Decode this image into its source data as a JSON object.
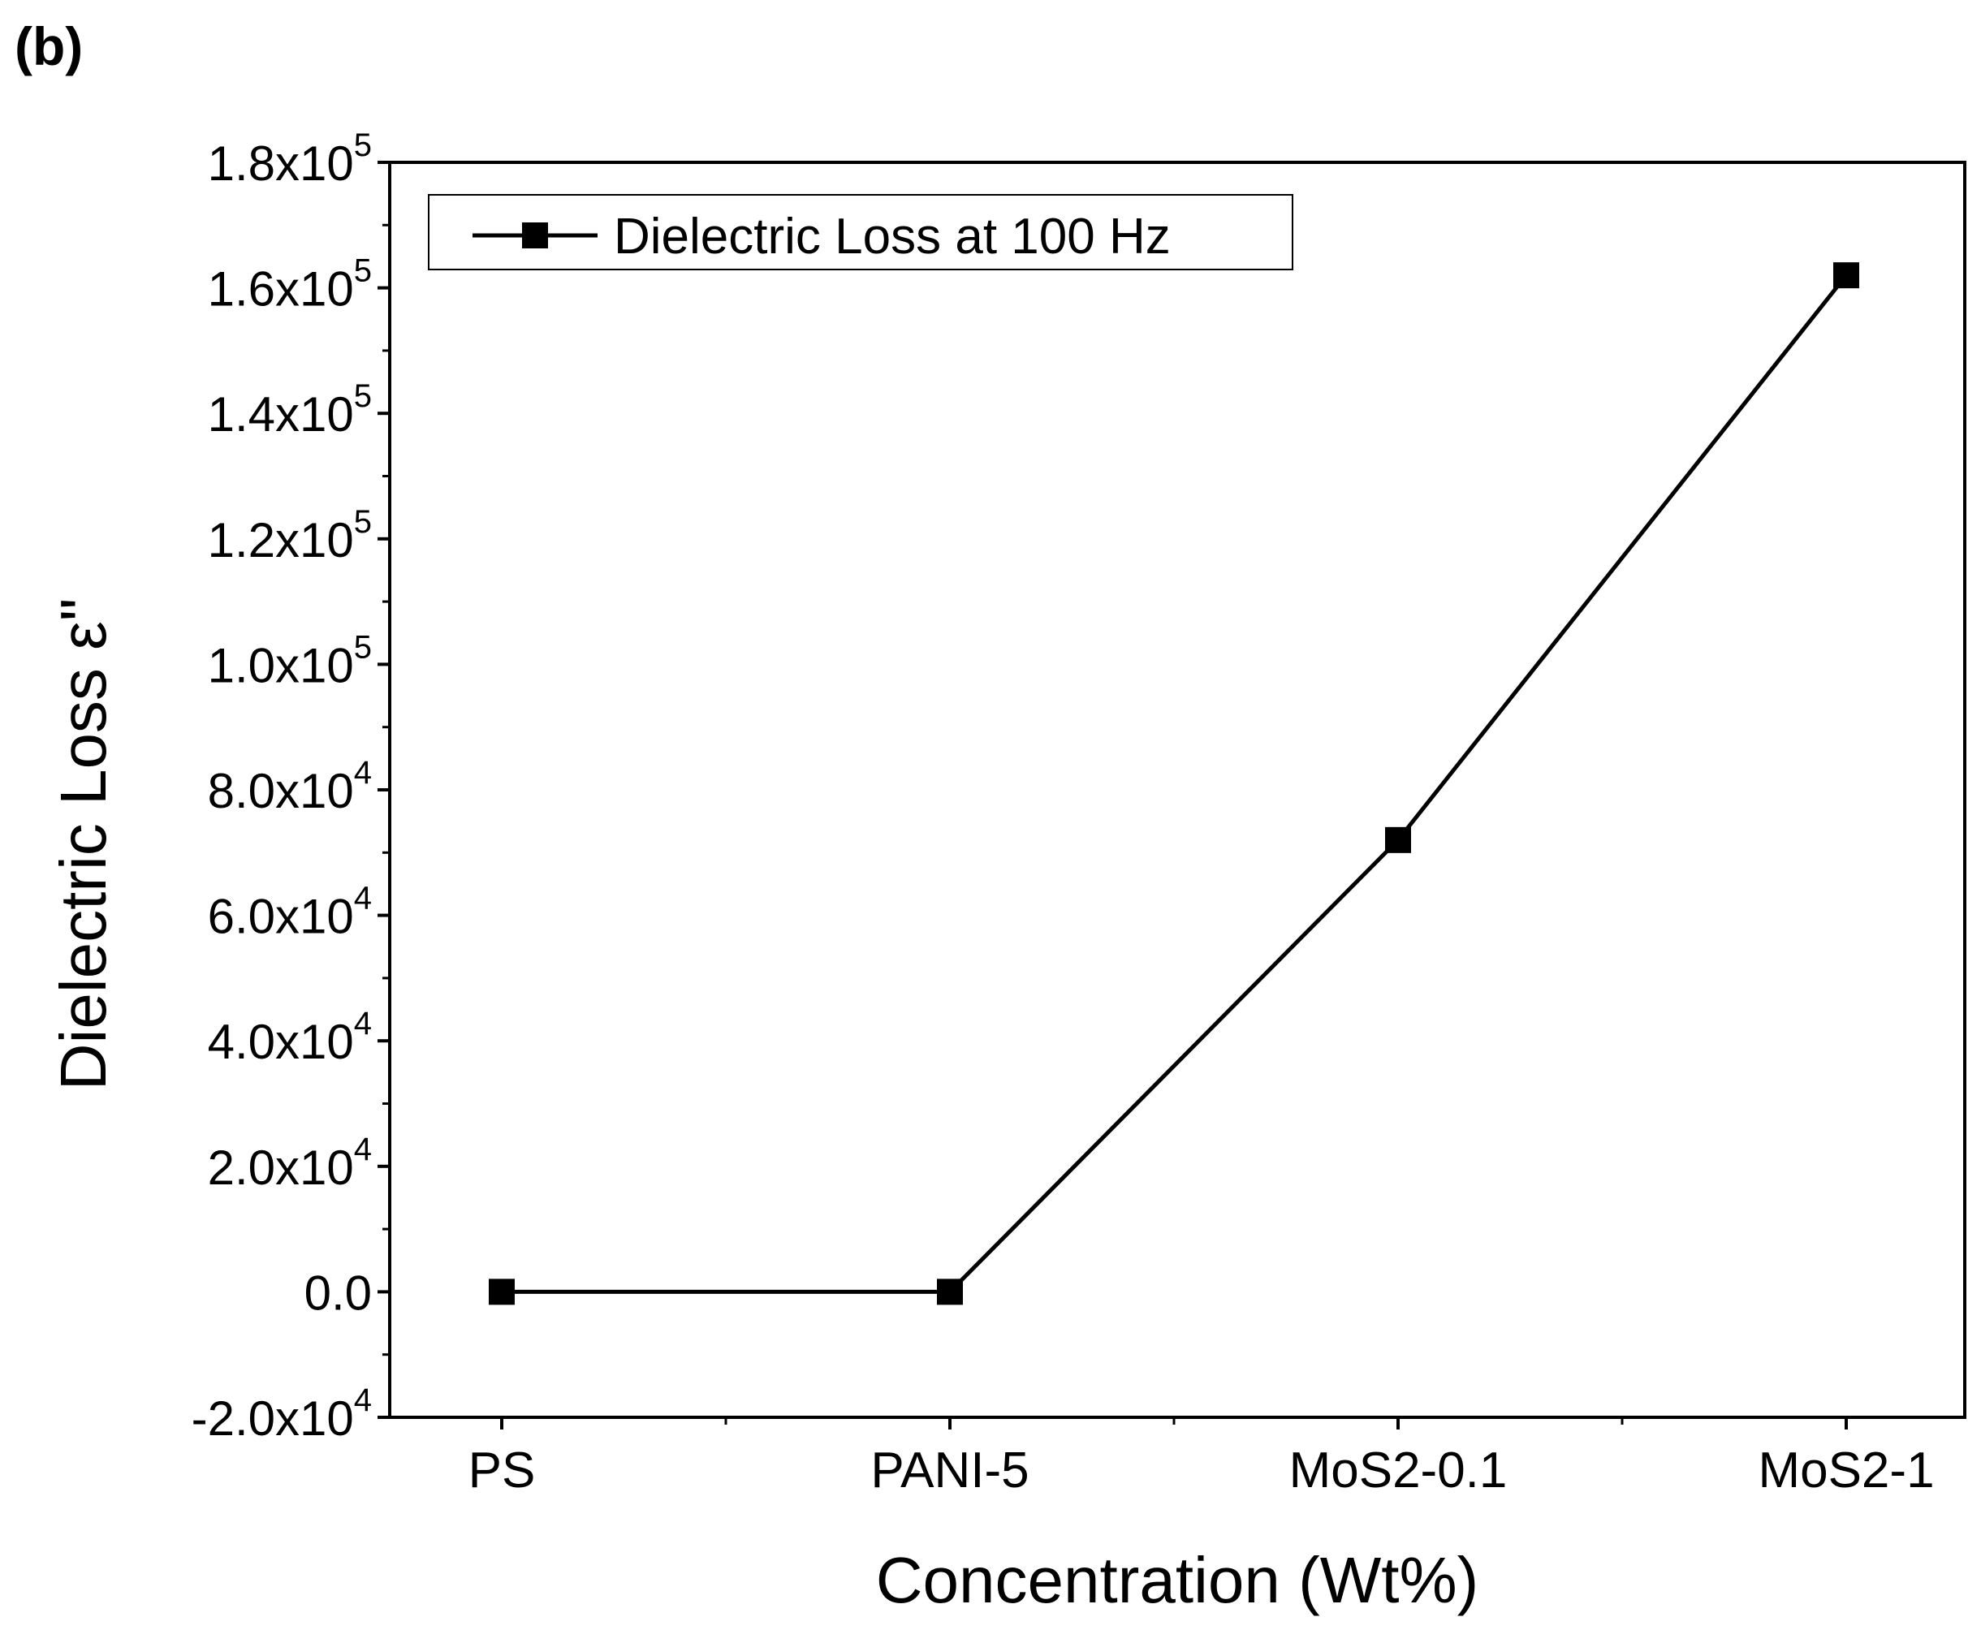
{
  "panel_label": "(b)",
  "chart_data": {
    "type": "line",
    "title": "",
    "xlabel": "Concentration (Wt%)",
    "ylabel": "Dielectric Loss ε\"",
    "categories": [
      "PS",
      "PANI-5",
      "MoS2-0.1",
      "MoS2-1"
    ],
    "series": [
      {
        "name": "Dielectric Loss at 100 Hz",
        "values": [
          0,
          0,
          72000,
          162000
        ],
        "marker": "square",
        "color": "#000000"
      }
    ],
    "ylim": [
      -20000,
      180000
    ],
    "y_ticks": [
      {
        "value": -20000,
        "mantissa": "-2.0x10",
        "exp": "4"
      },
      {
        "value": 0,
        "mantissa": "0.0",
        "exp": ""
      },
      {
        "value": 20000,
        "mantissa": "2.0x10",
        "exp": "4"
      },
      {
        "value": 40000,
        "mantissa": "4.0x10",
        "exp": "4"
      },
      {
        "value": 60000,
        "mantissa": "6.0x10",
        "exp": "4"
      },
      {
        "value": 80000,
        "mantissa": "8.0x10",
        "exp": "4"
      },
      {
        "value": 100000,
        "mantissa": "1.0x10",
        "exp": "5"
      },
      {
        "value": 120000,
        "mantissa": "1.2x10",
        "exp": "5"
      },
      {
        "value": 140000,
        "mantissa": "1.4x10",
        "exp": "5"
      },
      {
        "value": 160000,
        "mantissa": "1.6x10",
        "exp": "5"
      },
      {
        "value": 180000,
        "mantissa": "1.8x10",
        "exp": "5"
      }
    ],
    "legend_position": "top-left",
    "grid": false
  }
}
